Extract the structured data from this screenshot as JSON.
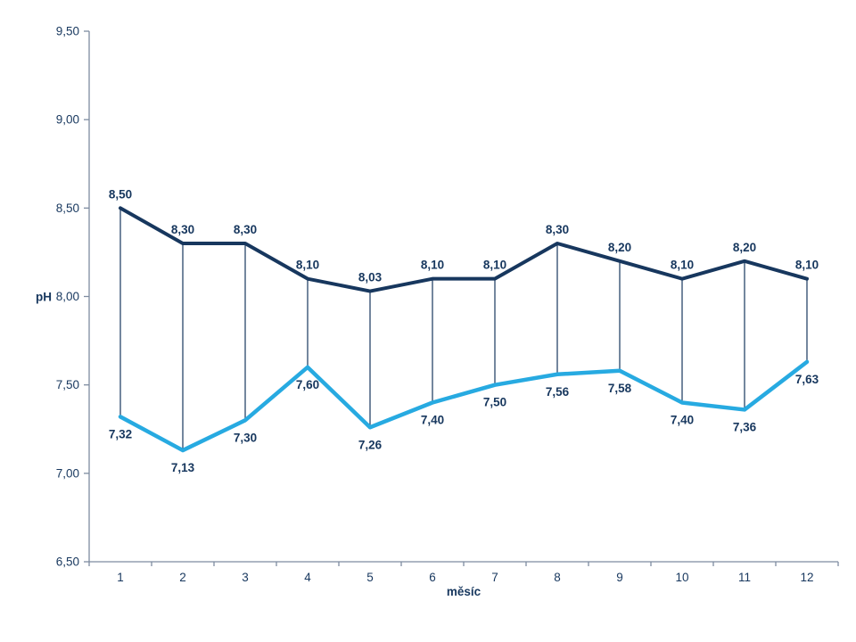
{
  "chart_data": {
    "type": "line",
    "title": "",
    "xlabel": "měsíc",
    "ylabel": "pH",
    "categories": [
      "1",
      "2",
      "3",
      "4",
      "5",
      "6",
      "7",
      "8",
      "9",
      "10",
      "11",
      "12"
    ],
    "series": [
      {
        "id": "upper",
        "color": "#17375E",
        "label_position": "above",
        "values": [
          8.5,
          8.3,
          8.3,
          8.1,
          8.03,
          8.1,
          8.1,
          8.3,
          8.2,
          8.1,
          8.2,
          8.1
        ],
        "labels": [
          "8,50",
          "8,30",
          "8,30",
          "8,10",
          "8,03",
          "8,10",
          "8,10",
          "8,30",
          "8,20",
          "8,10",
          "8,20",
          "8,10"
        ]
      },
      {
        "id": "lower",
        "color": "#27AAE1",
        "label_position": "below",
        "values": [
          7.32,
          7.13,
          7.3,
          7.6,
          7.26,
          7.4,
          7.5,
          7.56,
          7.58,
          7.4,
          7.36,
          7.63
        ],
        "labels": [
          "7,32",
          "7,13",
          "7,30",
          "7,60",
          "7,26",
          "7,40",
          "7,50",
          "7,56",
          "7,58",
          "7,40",
          "7,36",
          "7,63"
        ]
      }
    ],
    "y_axis": {
      "min": 6.5,
      "max": 9.5,
      "step": 0.5,
      "tick_labels": [
        "9,50",
        "9,00",
        "8,50",
        "8,00",
        "7,50",
        "7,00",
        "6,50"
      ]
    },
    "high_low_lines": true,
    "grid": false,
    "legend": "none",
    "colors": {
      "label_text": "#17375E",
      "axis_line": "#7E8CA0",
      "high_low_line": "#17375E",
      "background": "#ffffff"
    }
  }
}
